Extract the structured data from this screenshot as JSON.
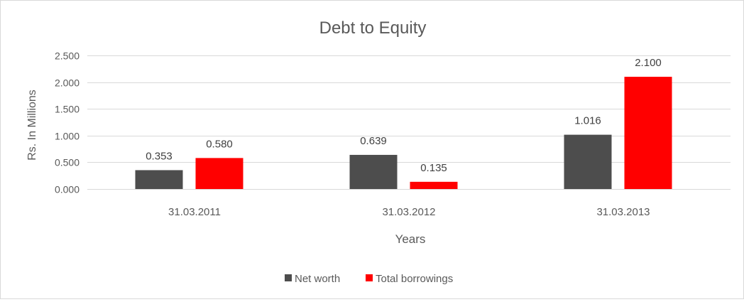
{
  "chart_data": {
    "type": "bar",
    "title": "Debt to Equity",
    "xlabel": "Years",
    "ylabel": "Rs. In Millions",
    "categories": [
      "31.03.2011",
      "31.03.2012",
      "31.03.2013"
    ],
    "series": [
      {
        "name": "Net worth",
        "color": "#4d4d4d",
        "values": [
          0.353,
          0.639,
          1.016
        ],
        "labels": [
          "0.353",
          "0.639",
          "1.016"
        ]
      },
      {
        "name": "Total borrowings",
        "color": "#ff0000",
        "values": [
          0.58,
          0.135,
          2.1
        ],
        "labels": [
          "0.580",
          "0.135",
          "2.100"
        ]
      }
    ],
    "ylim": [
      0,
      2.5
    ],
    "yticks": [
      0,
      0.5,
      1,
      1.5,
      2,
      2.5
    ],
    "ytick_labels": [
      "0.000",
      "0.500",
      "1.000",
      "1.500",
      "2.000",
      "2.500"
    ],
    "grid": true,
    "legend_position": "bottom"
  }
}
